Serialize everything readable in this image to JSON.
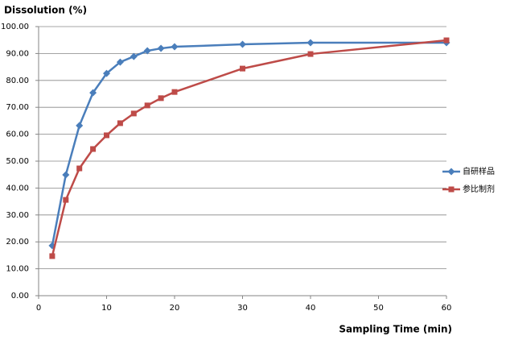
{
  "chart_data": {
    "type": "line",
    "title": "Dissolution (%)",
    "x_label": "Sampling Time (min)",
    "x": [
      2,
      4,
      6,
      8,
      10,
      12,
      14,
      16,
      18,
      20,
      30,
      40,
      60
    ],
    "series": [
      {
        "name": "自研样品",
        "color": "#4a7ebb",
        "marker": "diamond",
        "values": [
          18.6,
          44.9,
          63.2,
          75.4,
          82.6,
          86.8,
          88.9,
          91.0,
          91.9,
          92.5,
          93.4,
          94.0,
          94.0
        ]
      },
      {
        "name": "参比制剂",
        "color": "#be4b48",
        "marker": "square",
        "values": [
          14.7,
          35.6,
          47.3,
          54.5,
          59.6,
          64.1,
          67.7,
          70.7,
          73.4,
          75.7,
          84.4,
          89.8,
          94.9
        ]
      }
    ],
    "xlim": [
      0,
      60
    ],
    "xticks": [
      0,
      10,
      20,
      30,
      40,
      50,
      60
    ],
    "ylim": [
      0,
      100
    ],
    "yticks": [
      {
        "value": 0,
        "label": "0.00"
      },
      {
        "value": 10,
        "label": "10.00"
      },
      {
        "value": 20,
        "label": "20.00"
      },
      {
        "value": 30,
        "label": "30.00"
      },
      {
        "value": 40,
        "label": "40.00"
      },
      {
        "value": 50,
        "label": "50.00"
      },
      {
        "value": 60,
        "label": "60.00"
      },
      {
        "value": 70,
        "label": "70.00"
      },
      {
        "value": 80,
        "label": "80.00"
      },
      {
        "value": 90,
        "label": "90.00"
      },
      {
        "value": 100,
        "label": "100.00"
      }
    ],
    "grid": true,
    "legend": "right"
  }
}
